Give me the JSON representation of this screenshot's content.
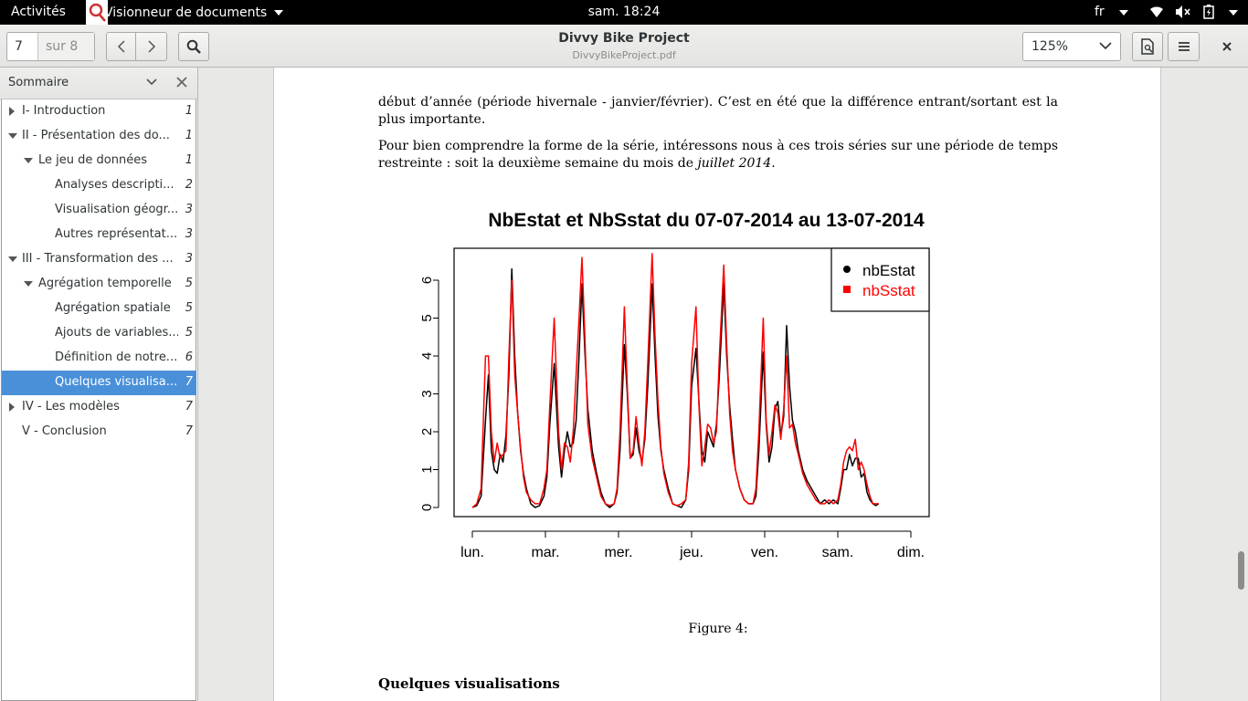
{
  "topbar": {
    "activities": "Activités",
    "app_name": "Visionneur de documents",
    "clock": "sam. 18:24",
    "lang": "fr"
  },
  "header": {
    "page_current": "7",
    "page_of": "sur 8",
    "title": "Divvy Bike Project",
    "filename": "DivvyBikeProject.pdf",
    "zoom": "125%"
  },
  "sidebar": {
    "title": "Sommaire",
    "items": [
      {
        "label": "I- Introduction",
        "page": "1"
      },
      {
        "label": "II - Présentation des do...",
        "page": "1"
      },
      {
        "label": "Le jeu de données",
        "page": "1"
      },
      {
        "label": "Analyses descripti...",
        "page": "2"
      },
      {
        "label": "Visualisation géogr...",
        "page": "3"
      },
      {
        "label": "Autres représentat...",
        "page": "3"
      },
      {
        "label": "III - Transformation des ...",
        "page": "3"
      },
      {
        "label": "Agrégation temporelle",
        "page": "5"
      },
      {
        "label": "Agrégation spatiale",
        "page": "5"
      },
      {
        "label": "Ajouts de variables...",
        "page": "5"
      },
      {
        "label": "Définition de notre...",
        "page": "6"
      },
      {
        "label": "Quelques visualisa...",
        "page": "7"
      },
      {
        "label": "IV - Les modèles",
        "page": "7"
      },
      {
        "label": "V - Conclusion",
        "page": "7"
      }
    ]
  },
  "document": {
    "para1": "début d’année (période hivernale - janvier/février). C’est en été que la différence entrant/sortant est la plus importante.",
    "para2_a": "Pour bien comprendre la forme de la série, intéressons nous à ces trois séries sur une période de temps restreinte : soit la deuxième semaine du mois de ",
    "para2_em": "juillet 2014",
    "para2_b": ".",
    "caption": "Figure 4:",
    "section_heading": "Quelques visualisations"
  },
  "colors": {
    "selection": "#4a90d9",
    "series_nbEstat": "#000000",
    "series_nbSstat": "#ff0000"
  },
  "chart_data": {
    "type": "line",
    "title": "NbEstat et NbSstat du 07-07-2014 au 13-07-2014",
    "xlabel": "",
    "ylabel": "",
    "x_ticks": [
      "lun.",
      "mar.",
      "mer.",
      "jeu.",
      "ven.",
      "sam.",
      "dim."
    ],
    "y_ticks": [
      "0",
      "1",
      "2",
      "3",
      "4",
      "5",
      "6"
    ],
    "ylim": [
      0,
      6.2
    ],
    "xlim": [
      0,
      6
    ],
    "legend_position": "top-right",
    "series": [
      {
        "name": "nbEstat",
        "color": "#000000",
        "marker": "circle",
        "points": [
          [
            0,
            0
          ],
          [
            0.06,
            0.05
          ],
          [
            0.12,
            0.3
          ],
          [
            0.18,
            2.3
          ],
          [
            0.22,
            3.5
          ],
          [
            0.26,
            1.5
          ],
          [
            0.3,
            1.0
          ],
          [
            0.34,
            0.9
          ],
          [
            0.38,
            1.4
          ],
          [
            0.42,
            1.2
          ],
          [
            0.46,
            1.9
          ],
          [
            0.5,
            3.5
          ],
          [
            0.54,
            6.3
          ],
          [
            0.58,
            4.0
          ],
          [
            0.62,
            2.5
          ],
          [
            0.66,
            1.5
          ],
          [
            0.7,
            0.9
          ],
          [
            0.74,
            0.5
          ],
          [
            0.8,
            0.1
          ],
          [
            0.86,
            0
          ],
          [
            0.92,
            0.05
          ],
          [
            0.98,
            0.3
          ],
          [
            1.02,
            0.8
          ],
          [
            1.06,
            2.2
          ],
          [
            1.12,
            3.8
          ],
          [
            1.18,
            1.6
          ],
          [
            1.22,
            0.8
          ],
          [
            1.26,
            1.5
          ],
          [
            1.3,
            2.0
          ],
          [
            1.34,
            1.6
          ],
          [
            1.38,
            1.7
          ],
          [
            1.42,
            2.3
          ],
          [
            1.46,
            4.0
          ],
          [
            1.5,
            5.9
          ],
          [
            1.54,
            4.1
          ],
          [
            1.58,
            2.6
          ],
          [
            1.64,
            1.5
          ],
          [
            1.7,
            0.9
          ],
          [
            1.76,
            0.4
          ],
          [
            1.82,
            0.1
          ],
          [
            1.88,
            0
          ],
          [
            1.94,
            0.1
          ],
          [
            1.98,
            0.4
          ],
          [
            2.02,
            1.5
          ],
          [
            2.08,
            4.3
          ],
          [
            2.12,
            3.0
          ],
          [
            2.16,
            1.3
          ],
          [
            2.2,
            1.4
          ],
          [
            2.24,
            2.1
          ],
          [
            2.28,
            1.5
          ],
          [
            2.32,
            1.2
          ],
          [
            2.36,
            1.8
          ],
          [
            2.4,
            3.2
          ],
          [
            2.46,
            5.9
          ],
          [
            2.5,
            4.0
          ],
          [
            2.54,
            2.4
          ],
          [
            2.58,
            1.5
          ],
          [
            2.62,
            1.0
          ],
          [
            2.68,
            0.5
          ],
          [
            2.74,
            0.1
          ],
          [
            2.8,
            0.05
          ],
          [
            2.86,
            0
          ],
          [
            2.92,
            0.2
          ],
          [
            2.96,
            1.0
          ],
          [
            3.0,
            3.2
          ],
          [
            3.06,
            4.2
          ],
          [
            3.1,
            2.8
          ],
          [
            3.14,
            1.5
          ],
          [
            3.18,
            1.2
          ],
          [
            3.22,
            2.0
          ],
          [
            3.26,
            1.8
          ],
          [
            3.3,
            1.6
          ],
          [
            3.34,
            2.2
          ],
          [
            3.38,
            3.5
          ],
          [
            3.44,
            5.9
          ],
          [
            3.48,
            4.0
          ],
          [
            3.52,
            2.7
          ],
          [
            3.56,
            1.8
          ],
          [
            3.6,
            1.0
          ],
          [
            3.66,
            0.5
          ],
          [
            3.72,
            0.2
          ],
          [
            3.78,
            0.1
          ],
          [
            3.84,
            0.1
          ],
          [
            3.88,
            0.3
          ],
          [
            3.92,
            1.5
          ],
          [
            3.98,
            4.1
          ],
          [
            4.02,
            2.2
          ],
          [
            4.06,
            1.2
          ],
          [
            4.1,
            1.6
          ],
          [
            4.14,
            2.6
          ],
          [
            4.18,
            2.8
          ],
          [
            4.22,
            1.9
          ],
          [
            4.26,
            2.4
          ],
          [
            4.3,
            4.8
          ],
          [
            4.34,
            3.2
          ],
          [
            4.38,
            2.3
          ],
          [
            4.42,
            2.0
          ],
          [
            4.46,
            1.5
          ],
          [
            4.52,
            1.0
          ],
          [
            4.58,
            0.7
          ],
          [
            4.64,
            0.5
          ],
          [
            4.7,
            0.3
          ],
          [
            4.76,
            0.1
          ],
          [
            4.82,
            0.2
          ],
          [
            4.88,
            0.1
          ],
          [
            4.94,
            0.2
          ],
          [
            5.0,
            0.1
          ],
          [
            5.04,
            0.5
          ],
          [
            5.08,
            1.0
          ],
          [
            5.12,
            1.0
          ],
          [
            5.16,
            1.4
          ],
          [
            5.2,
            1.1
          ],
          [
            5.24,
            1.3
          ],
          [
            5.28,
            1.3
          ],
          [
            5.32,
            0.8
          ],
          [
            5.36,
            0.9
          ],
          [
            5.4,
            0.4
          ],
          [
            5.44,
            0.2
          ],
          [
            5.48,
            0.1
          ],
          [
            5.52,
            0.05
          ],
          [
            5.56,
            0.1
          ]
        ]
      },
      {
        "name": "nbSstat",
        "color": "#ff0000",
        "marker": "square",
        "points": [
          [
            0,
            0
          ],
          [
            0.06,
            0.1
          ],
          [
            0.12,
            0.5
          ],
          [
            0.18,
            4.0
          ],
          [
            0.22,
            4.0
          ],
          [
            0.26,
            2.0
          ],
          [
            0.3,
            1.2
          ],
          [
            0.34,
            1.7
          ],
          [
            0.38,
            1.3
          ],
          [
            0.42,
            1.4
          ],
          [
            0.46,
            1.5
          ],
          [
            0.5,
            4.0
          ],
          [
            0.54,
            6.0
          ],
          [
            0.58,
            3.5
          ],
          [
            0.62,
            2.5
          ],
          [
            0.66,
            1.6
          ],
          [
            0.7,
            0.8
          ],
          [
            0.74,
            0.4
          ],
          [
            0.8,
            0.2
          ],
          [
            0.86,
            0.1
          ],
          [
            0.92,
            0.1
          ],
          [
            0.98,
            0.5
          ],
          [
            1.02,
            1.0
          ],
          [
            1.06,
            2.7
          ],
          [
            1.12,
            5.0
          ],
          [
            1.18,
            2.0
          ],
          [
            1.22,
            1.0
          ],
          [
            1.26,
            1.7
          ],
          [
            1.3,
            1.6
          ],
          [
            1.34,
            1.2
          ],
          [
            1.38,
            2.0
          ],
          [
            1.42,
            3.5
          ],
          [
            1.46,
            5.0
          ],
          [
            1.5,
            6.6
          ],
          [
            1.54,
            4.5
          ],
          [
            1.58,
            2.2
          ],
          [
            1.64,
            1.3
          ],
          [
            1.7,
            0.8
          ],
          [
            1.76,
            0.3
          ],
          [
            1.82,
            0.1
          ],
          [
            1.88,
            0.05
          ],
          [
            1.94,
            0.1
          ],
          [
            1.98,
            0.5
          ],
          [
            2.02,
            2.0
          ],
          [
            2.08,
            5.3
          ],
          [
            2.12,
            3.2
          ],
          [
            2.16,
            1.3
          ],
          [
            2.2,
            1.5
          ],
          [
            2.24,
            2.4
          ],
          [
            2.28,
            1.7
          ],
          [
            2.32,
            1.1
          ],
          [
            2.36,
            2.0
          ],
          [
            2.4,
            3.8
          ],
          [
            2.46,
            6.7
          ],
          [
            2.5,
            4.5
          ],
          [
            2.54,
            2.8
          ],
          [
            2.58,
            1.6
          ],
          [
            2.62,
            0.9
          ],
          [
            2.68,
            0.4
          ],
          [
            2.74,
            0.1
          ],
          [
            2.8,
            0.05
          ],
          [
            2.86,
            0.1
          ],
          [
            2.92,
            0.2
          ],
          [
            2.96,
            1.2
          ],
          [
            3.0,
            3.8
          ],
          [
            3.06,
            5.3
          ],
          [
            3.1,
            2.7
          ],
          [
            3.14,
            1.1
          ],
          [
            3.18,
            1.6
          ],
          [
            3.22,
            2.2
          ],
          [
            3.26,
            2.1
          ],
          [
            3.3,
            1.7
          ],
          [
            3.34,
            2.0
          ],
          [
            3.38,
            4.0
          ],
          [
            3.44,
            6.4
          ],
          [
            3.48,
            4.3
          ],
          [
            3.52,
            2.5
          ],
          [
            3.56,
            1.5
          ],
          [
            3.6,
            1.0
          ],
          [
            3.66,
            0.5
          ],
          [
            3.72,
            0.2
          ],
          [
            3.78,
            0.1
          ],
          [
            3.84,
            0.1
          ],
          [
            3.88,
            0.5
          ],
          [
            3.92,
            2.0
          ],
          [
            3.98,
            5.0
          ],
          [
            4.02,
            2.3
          ],
          [
            4.06,
            1.4
          ],
          [
            4.1,
            2.0
          ],
          [
            4.14,
            2.7
          ],
          [
            4.18,
            2.5
          ],
          [
            4.22,
            1.8
          ],
          [
            4.26,
            2.6
          ],
          [
            4.3,
            4.0
          ],
          [
            4.34,
            2.1
          ],
          [
            4.38,
            2.2
          ],
          [
            4.42,
            1.7
          ],
          [
            4.46,
            1.4
          ],
          [
            4.52,
            0.9
          ],
          [
            4.58,
            0.6
          ],
          [
            4.64,
            0.4
          ],
          [
            4.7,
            0.2
          ],
          [
            4.76,
            0.1
          ],
          [
            4.82,
            0.1
          ],
          [
            4.88,
            0.2
          ],
          [
            4.94,
            0.1
          ],
          [
            5.0,
            0.2
          ],
          [
            5.04,
            0.6
          ],
          [
            5.08,
            1.2
          ],
          [
            5.12,
            1.5
          ],
          [
            5.16,
            1.6
          ],
          [
            5.2,
            1.5
          ],
          [
            5.24,
            1.8
          ],
          [
            5.28,
            1.0
          ],
          [
            5.32,
            1.2
          ],
          [
            5.36,
            1.0
          ],
          [
            5.4,
            0.6
          ],
          [
            5.44,
            0.3
          ],
          [
            5.48,
            0.1
          ],
          [
            5.52,
            0.1
          ],
          [
            5.56,
            0.1
          ]
        ]
      }
    ]
  }
}
